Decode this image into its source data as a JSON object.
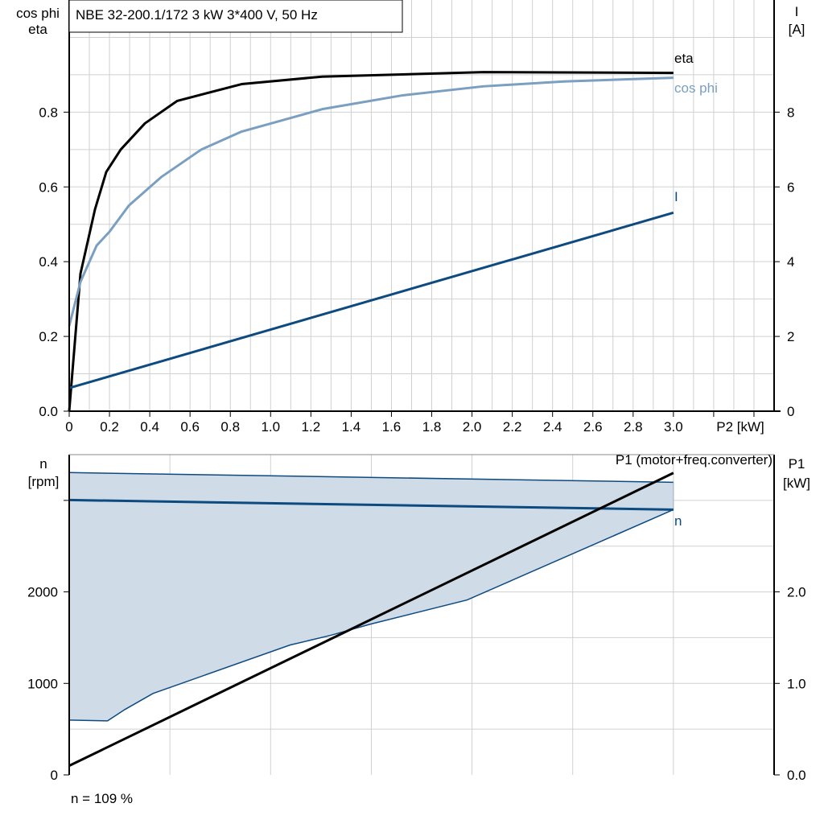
{
  "title": "NBE 32-200.1/172   3 kW   3*400 V, 50 Hz",
  "footer": "n = 109 %",
  "colors": {
    "eta": "#000000",
    "cos_phi": "#7a9fc0",
    "I": "#0d4a80",
    "n": "#0d4a80",
    "band_fill": "#cfdbe7",
    "P1": "#000000",
    "grid": "#d0d0d0"
  },
  "chart_data": [
    {
      "type": "line",
      "xlabel": "P2 [kW]",
      "ylabel_left": [
        "cos phi",
        "eta"
      ],
      "ylabel_right": [
        "I",
        "[A]"
      ],
      "xlim": [
        0,
        3.5
      ],
      "ylim_left": [
        0,
        1.1
      ],
      "ylim_right": [
        0,
        11
      ],
      "x_ticks": [
        "0",
        "0.2",
        "0.4",
        "0.6",
        "0.8",
        "1.0",
        "1.2",
        "1.4",
        "1.6",
        "1.8",
        "2.0",
        "2.2",
        "2.4",
        "2.6",
        "2.8",
        "3.0"
      ],
      "y_ticks_left": [
        "0.0",
        "0.2",
        "0.4",
        "0.6",
        "0.8"
      ],
      "y_ticks_right": [
        "0",
        "2",
        "4",
        "6",
        "8"
      ],
      "grid": true,
      "series": [
        {
          "name": "eta",
          "axis": "left",
          "x": [
            0,
            0.056,
            0.128,
            0.184,
            0.256,
            0.376,
            0.536,
            0.856,
            1.256,
            2.056,
            3.0
          ],
          "y": [
            0,
            0.368,
            0.54,
            0.64,
            0.7,
            0.77,
            0.83,
            0.875,
            0.895,
            0.907,
            0.905
          ]
        },
        {
          "name": "cos phi",
          "axis": "left",
          "x": [
            0,
            0.056,
            0.136,
            0.2,
            0.296,
            0.456,
            0.656,
            0.856,
            1.256,
            1.656,
            2.056,
            2.456,
            3.0
          ],
          "y": [
            0.228,
            0.346,
            0.443,
            0.48,
            0.55,
            0.626,
            0.7,
            0.748,
            0.808,
            0.845,
            0.869,
            0.882,
            0.892
          ]
        },
        {
          "name": "I",
          "axis": "right",
          "x": [
            0,
            3.0
          ],
          "y": [
            0.62,
            5.31
          ]
        }
      ]
    },
    {
      "type": "line",
      "ylabel_left": [
        "n",
        "[rpm]"
      ],
      "ylabel_right": [
        "P1",
        "[kW]"
      ],
      "xlim": [
        0,
        3.5
      ],
      "ylim_left": [
        0,
        3500
      ],
      "ylim_right": [
        0,
        3.5
      ],
      "y_ticks_left": [
        "0",
        "1000",
        "2000"
      ],
      "y_ticks_right": [
        "0.0",
        "1.0",
        "2.0"
      ],
      "grid": true,
      "band": {
        "upper": {
          "x": [
            0,
            3.0
          ],
          "y": [
            3304,
            3198
          ]
        },
        "lower": {
          "x": [
            0,
            0.19,
            0.276,
            0.416,
            1.096,
            1.296,
            1.496,
            1.976,
            3.0
          ],
          "y": [
            599,
            590,
            714,
            890,
            1419,
            1524,
            1648,
            1912,
            2899
          ]
        }
      },
      "series": [
        {
          "name": "n",
          "axis": "left",
          "x": [
            0,
            3.0
          ],
          "y": [
            3004,
            2899
          ]
        },
        {
          "name": "P1 (motor+freq.converter)",
          "axis": "right",
          "x": [
            0,
            3.0
          ],
          "y": [
            0.1,
            3.3
          ]
        }
      ]
    }
  ]
}
